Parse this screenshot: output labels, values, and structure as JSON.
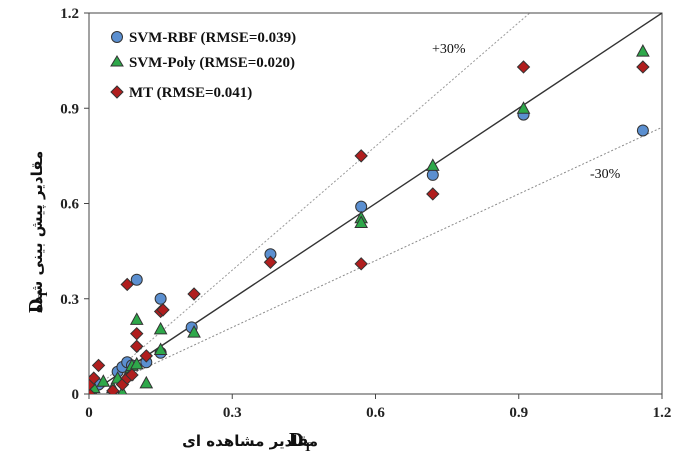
{
  "chart_data": {
    "type": "scatter",
    "title": "",
    "xlabel": {
      "text": "مقادیر مشاهده ای",
      "symbol": "D",
      "subscript": "T"
    },
    "ylabel": {
      "text": "مقادیر پیش بینی شده",
      "symbol": "D",
      "subscript": "T"
    },
    "xlim": [
      0,
      1.2
    ],
    "ylim": [
      0,
      1.2
    ],
    "xticks": [
      "0",
      "0.3",
      "0.6",
      "0.9",
      "1.2"
    ],
    "yticks": [
      "0",
      "0.3",
      "0.6",
      "0.9",
      "1.2"
    ],
    "tick_values": [
      0,
      0.3,
      0.6,
      0.9,
      1.2
    ],
    "grid": false,
    "legend_position": "top-left",
    "reference_lines": [
      {
        "slope": 1.0,
        "style": "solid",
        "color": "#333333"
      },
      {
        "slope": 1.3,
        "style": "dotted",
        "color": "#9a9a9a",
        "label": "+30%"
      },
      {
        "slope": 0.7,
        "style": "dotted",
        "color": "#8a8a8a",
        "label": "-30%"
      }
    ],
    "series": [
      {
        "name": "SVM-RBF (RMSE=0.039)",
        "marker": "circle",
        "color": "#5b8fd0",
        "points": [
          [
            0.0,
            0.0
          ],
          [
            0.0,
            0.005
          ],
          [
            0.005,
            0.01
          ],
          [
            0.01,
            0.02
          ],
          [
            0.02,
            0.03
          ],
          [
            0.06,
            0.07
          ],
          [
            0.07,
            0.085
          ],
          [
            0.08,
            0.1
          ],
          [
            0.09,
            0.09
          ],
          [
            0.1,
            0.36
          ],
          [
            0.12,
            0.1
          ],
          [
            0.15,
            0.3
          ],
          [
            0.15,
            0.13
          ],
          [
            0.215,
            0.21
          ],
          [
            0.38,
            0.44
          ],
          [
            0.57,
            0.59
          ],
          [
            0.72,
            0.69
          ],
          [
            0.91,
            0.88
          ],
          [
            1.16,
            0.83
          ]
        ]
      },
      {
        "name": "SVM-Poly (RMSE=0.020)",
        "marker": "triangle",
        "color": "#2ea84a",
        "points": [
          [
            0.0,
            0.0
          ],
          [
            0.005,
            0.01
          ],
          [
            0.01,
            0.02
          ],
          [
            0.03,
            0.04
          ],
          [
            0.05,
            0.02
          ],
          [
            0.06,
            0.05
          ],
          [
            0.07,
            0.005
          ],
          [
            0.08,
            0.06
          ],
          [
            0.09,
            0.09
          ],
          [
            0.1,
            0.095
          ],
          [
            0.1,
            0.235
          ],
          [
            0.12,
            0.035
          ],
          [
            0.15,
            0.205
          ],
          [
            0.15,
            0.14
          ],
          [
            0.22,
            0.195
          ],
          [
            0.57,
            0.555
          ],
          [
            0.57,
            0.54
          ],
          [
            0.72,
            0.72
          ],
          [
            0.91,
            0.9
          ],
          [
            1.16,
            1.08
          ]
        ]
      },
      {
        "name": "MT (RMSE=0.041)",
        "marker": "diamond",
        "color": "#b01e1e",
        "points": [
          [
            0.0,
            0.0
          ],
          [
            0.0,
            0.03
          ],
          [
            0.01,
            0.05
          ],
          [
            0.02,
            0.09
          ],
          [
            0.05,
            0.01
          ],
          [
            0.07,
            0.03
          ],
          [
            0.08,
            0.345
          ],
          [
            0.08,
            0.05
          ],
          [
            0.09,
            0.06
          ],
          [
            0.1,
            0.19
          ],
          [
            0.1,
            0.15
          ],
          [
            0.12,
            0.12
          ],
          [
            0.15,
            0.26
          ],
          [
            0.155,
            0.265
          ],
          [
            0.22,
            0.315
          ],
          [
            0.38,
            0.415
          ],
          [
            0.57,
            0.75
          ],
          [
            0.57,
            0.41
          ],
          [
            0.72,
            0.63
          ],
          [
            0.91,
            1.03
          ],
          [
            1.16,
            1.03
          ]
        ]
      }
    ]
  }
}
